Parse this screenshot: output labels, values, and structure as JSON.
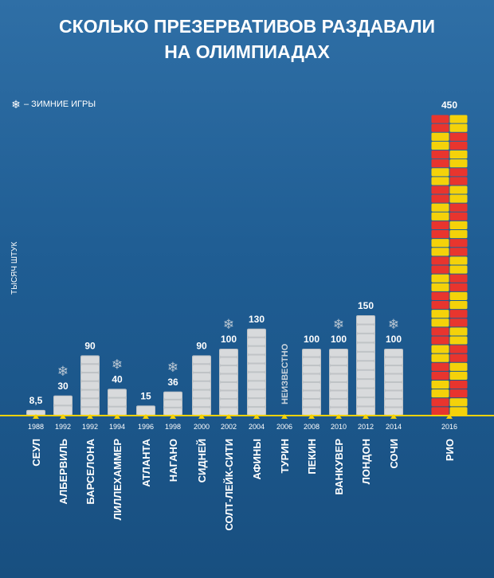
{
  "title_lines": [
    "СКОЛЬКО ПРЕЗЕРВАТИВОВ РАЗДАВАЛИ",
    "НА ОЛИМПИАДАХ"
  ],
  "legend": {
    "icon": "snowflake-icon",
    "text": "– ЗИМНИЕ ИГРЫ"
  },
  "colors": {
    "pack": "#d8dadc",
    "pack_shade": "#bfc3c6",
    "axis": "#f4d20a",
    "snowflake": "#b9c6d2",
    "rio_packs": [
      "#e8352e",
      "#2aa640",
      "#f4d20a",
      "#1fa0d8"
    ]
  },
  "chart_data": {
    "type": "bar",
    "ylabel": "ТЫСЯЧ ШТУК",
    "ylim": [
      0,
      450
    ],
    "categories": [
      "СЕУЛ",
      "АЛБЕРВИЛЬ",
      "БАРСЕЛОНА",
      "ЛИЛЛЕХАММЕР",
      "АТЛАНТА",
      "НАГАНО",
      "СИДНЕЙ",
      "СОЛТ-ЛЕЙК-СИТИ",
      "АФИНЫ",
      "ТУРИН",
      "ПЕКИН",
      "ВАНКУВЕР",
      "ЛОНДОН",
      "СОЧИ",
      "РИО"
    ],
    "years": [
      "1988",
      "1992",
      "1992",
      "1994",
      "1996",
      "1998",
      "2000",
      "2002",
      "2004",
      "2006",
      "2008",
      "2010",
      "2012",
      "2014",
      "2016"
    ],
    "values": [
      8.5,
      30,
      90,
      40,
      15,
      36,
      90,
      100,
      130,
      null,
      100,
      100,
      150,
      100,
      450
    ],
    "value_labels": [
      "8,5",
      "30",
      "90",
      "40",
      "15",
      "36",
      "90",
      "100",
      "130",
      "",
      "100",
      "100",
      "150",
      "100",
      "450"
    ],
    "winter": [
      false,
      true,
      false,
      true,
      false,
      true,
      false,
      true,
      false,
      false,
      false,
      true,
      false,
      true,
      false
    ],
    "unknown_label": "НЕИЗВЕСТНО",
    "unknown_index": 9
  }
}
